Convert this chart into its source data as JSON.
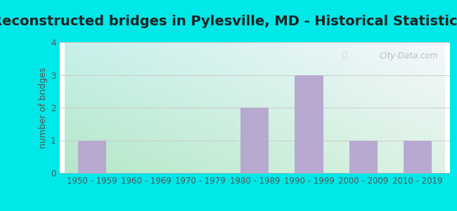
{
  "title": "Reconstructed bridges in Pylesville, MD - Historical Statistics",
  "xlabel": "",
  "ylabel": "number of bridges",
  "categories": [
    "1950 - 1959",
    "1960 - 1969",
    "1970 - 1979",
    "1980 - 1989",
    "1990 - 1999",
    "2000 - 2009",
    "2010 - 2019"
  ],
  "values": [
    1,
    0,
    0,
    2,
    3,
    1,
    1
  ],
  "bar_color": "#b8a9d0",
  "ylim": [
    0,
    4
  ],
  "yticks": [
    0,
    1,
    2,
    3,
    4
  ],
  "background_outer": "#00e8e8",
  "grid_color": "#cccccc",
  "title_fontsize": 14,
  "label_fontsize": 9,
  "tick_fontsize": 8.5,
  "tick_color": "#555555",
  "title_color": "#222222",
  "watermark": "City-Data.com",
  "bar_width": 0.52,
  "grad_top_left": "#c8ede8",
  "grad_top_right": "#f0f0f8",
  "grad_bottom_left": "#b8e8c0",
  "grad_bottom_right": "#ddf0e8"
}
